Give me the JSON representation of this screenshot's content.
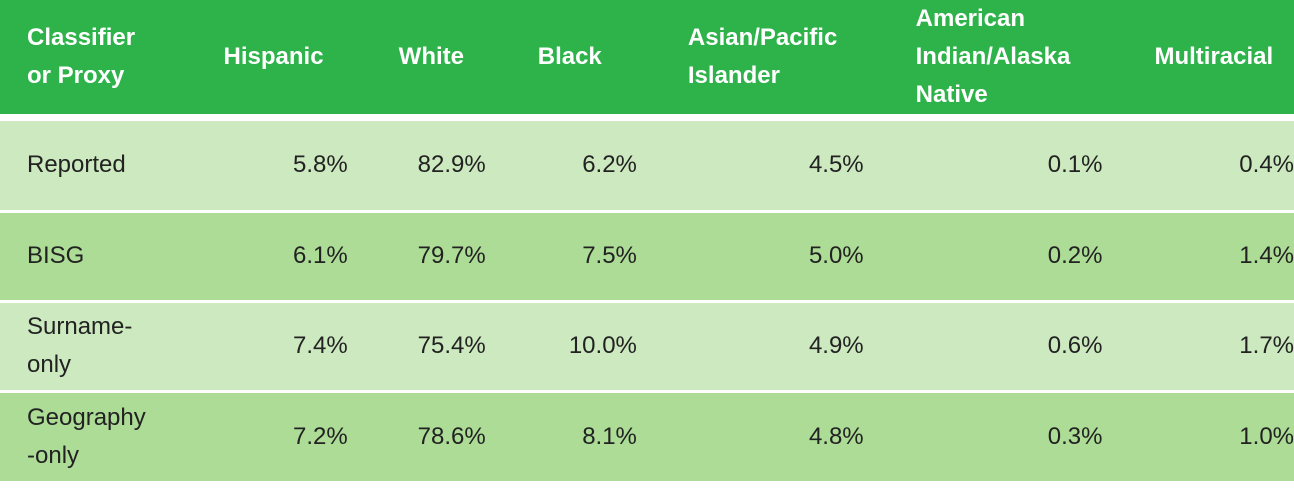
{
  "table": {
    "headers": [
      "Classifier or Proxy",
      "Hispanic",
      "White",
      "Black",
      "Asian/Pacific Islander",
      "American Indian/Alaska Native",
      "Multiracial"
    ],
    "header_lines": {
      "classifier": [
        "Classifier",
        "or Proxy"
      ],
      "asian": [
        "Asian/Pacific",
        "Islander"
      ],
      "american_indian": [
        "American",
        "Indian/Alaska",
        "Native"
      ]
    },
    "rows": [
      {
        "label_lines": [
          "Reported"
        ],
        "values": [
          "5.8%",
          "82.9%",
          "6.2%",
          "4.5%",
          "0.1%",
          "0.4%"
        ]
      },
      {
        "label_lines": [
          "BISG"
        ],
        "values": [
          "6.1%",
          "79.7%",
          "7.5%",
          "5.0%",
          "0.2%",
          "1.4%"
        ]
      },
      {
        "label_lines": [
          "Surname-",
          "only"
        ],
        "values": [
          "7.4%",
          "75.4%",
          "10.0%",
          "4.9%",
          "0.6%",
          "1.7%"
        ]
      },
      {
        "label_lines": [
          "Geography",
          "-only"
        ],
        "values": [
          "7.2%",
          "78.6%",
          "8.1%",
          "4.8%",
          "0.3%",
          "1.0%"
        ]
      }
    ]
  },
  "colors": {
    "header_bg": "#2db34a",
    "row_light": "#cde9bf",
    "row_dark": "#acdc95"
  }
}
